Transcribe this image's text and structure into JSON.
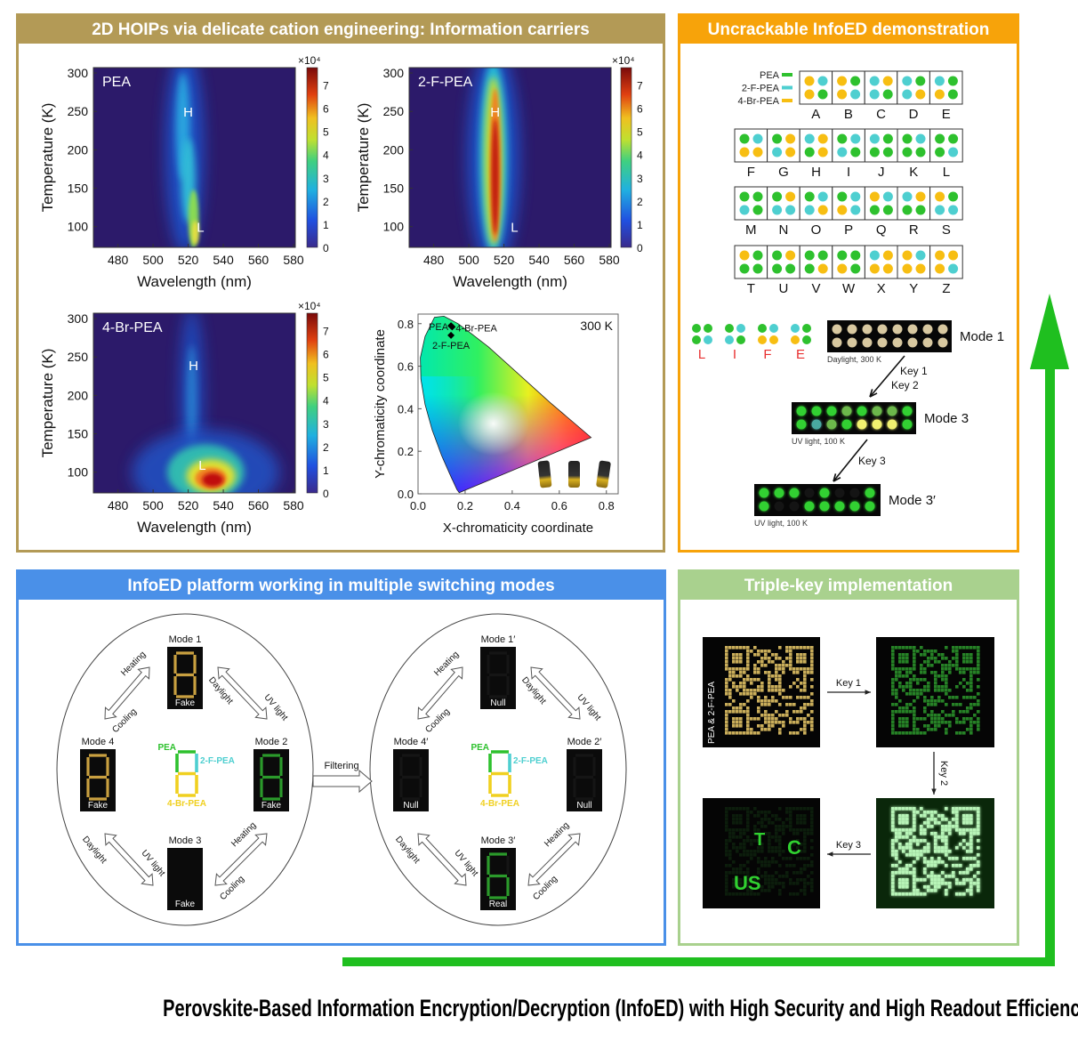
{
  "panels": {
    "hoips": {
      "title": "2D HOIPs via delicate cation engineering: Information carriers",
      "color": "#b39a56"
    },
    "infoed_demo": {
      "title": "Uncrackable InfoED demonstration",
      "color": "#f7a30a"
    },
    "switching": {
      "title": "InfoED platform working in multiple switching modes",
      "color": "#4a90e8"
    },
    "triple_key": {
      "title": "Triple-key implementation",
      "color": "#a9d18e"
    }
  },
  "chart_data": [
    {
      "type": "heatmap",
      "title": "PEA",
      "xlabel": "Wavelength (nm)",
      "ylabel": "Temperature (K)",
      "xticks": [
        "480",
        "500",
        "520",
        "540",
        "560",
        "580"
      ],
      "yticks": [
        "100",
        "150",
        "200",
        "250",
        "300"
      ],
      "xlim": [
        466,
        581
      ],
      "ylim": [
        73,
        307
      ],
      "colorbar": {
        "multiplier": "×10⁴",
        "ticks": [
          "0",
          "1",
          "2",
          "3",
          "4",
          "5",
          "6",
          "7"
        ],
        "range": [
          0,
          7.75
        ]
      },
      "annotations": [
        {
          "text": "H",
          "x": 520,
          "y": 250
        },
        {
          "text": "L",
          "x": 527,
          "y": 100
        }
      ]
    },
    {
      "type": "heatmap",
      "title": "2-F-PEA",
      "xlabel": "Wavelength (nm)",
      "ylabel": "Temperature (K)",
      "xticks": [
        "480",
        "500",
        "520",
        "540",
        "560",
        "580"
      ],
      "yticks": [
        "100",
        "150",
        "200",
        "250",
        "300"
      ],
      "xlim": [
        466,
        581
      ],
      "ylim": [
        73,
        307
      ],
      "colorbar": {
        "multiplier": "×10⁴",
        "ticks": [
          "0",
          "1",
          "2",
          "3",
          "4",
          "5",
          "6",
          "7"
        ],
        "range": [
          0,
          7.75
        ]
      },
      "annotations": [
        {
          "text": "H",
          "x": 515,
          "y": 250
        },
        {
          "text": "L",
          "x": 526,
          "y": 100
        }
      ]
    },
    {
      "type": "heatmap",
      "title": "4-Br-PEA",
      "xlabel": "Wavelength (nm)",
      "ylabel": "Temperature (K)",
      "xticks": [
        "480",
        "500",
        "520",
        "540",
        "560",
        "580"
      ],
      "yticks": [
        "100",
        "150",
        "200",
        "250",
        "300"
      ],
      "xlim": [
        466,
        581
      ],
      "ylim": [
        73,
        307
      ],
      "colorbar": {
        "multiplier": "×10⁴",
        "ticks": [
          "0",
          "1",
          "2",
          "3",
          "4",
          "5",
          "6",
          "7"
        ],
        "range": [
          0,
          7.75
        ]
      },
      "annotations": [
        {
          "text": "H",
          "x": 523,
          "y": 240
        },
        {
          "text": "L",
          "x": 528,
          "y": 110
        }
      ]
    },
    {
      "type": "scatter",
      "title": "",
      "xlabel": "X-chromaticity coordinate",
      "ylabel": "Y-chromaticity coordinate",
      "xticks": [
        "0.0",
        "0.2",
        "0.4",
        "0.6",
        "0.8"
      ],
      "yticks": [
        "0.0",
        "0.2",
        "0.4",
        "0.6",
        "0.8"
      ],
      "xlim": [
        0,
        0.85
      ],
      "ylim": [
        0,
        0.845
      ],
      "annotation": "300 K",
      "points": [
        {
          "name": "PEA",
          "x": 0.14,
          "y": 0.79
        },
        {
          "name": "4-Br-PEA",
          "x": 0.145,
          "y": 0.785
        },
        {
          "name": "2-F-PEA",
          "x": 0.14,
          "y": 0.745
        }
      ]
    }
  ],
  "cation_legend": [
    {
      "name": "PEA",
      "color": "#2ec12e"
    },
    {
      "name": "2-F-PEA",
      "color": "#4ecfd0"
    },
    {
      "name": "4-Br-PEA",
      "color": "#f7be12"
    }
  ],
  "alphabet": [
    {
      "letter": "A",
      "dots": "YCYG"
    },
    {
      "letter": "B",
      "dots": "YGYC"
    },
    {
      "letter": "C",
      "dots": "CYCG"
    },
    {
      "letter": "D",
      "dots": "CGCY"
    },
    {
      "letter": "E",
      "dots": "CGYG"
    },
    {
      "letter": "F",
      "dots": "GCYY"
    },
    {
      "letter": "G",
      "dots": "GYCY"
    },
    {
      "letter": "H",
      "dots": "CYGY"
    },
    {
      "letter": "I",
      "dots": "GCCG"
    },
    {
      "letter": "J",
      "dots": "CGGG"
    },
    {
      "letter": "K",
      "dots": "GCGG"
    },
    {
      "letter": "L",
      "dots": "GGGC"
    },
    {
      "letter": "M",
      "dots": "GGCG"
    },
    {
      "letter": "N",
      "dots": "GYCC"
    },
    {
      "letter": "O",
      "dots": "GCCY"
    },
    {
      "letter": "P",
      "dots": "GCYC"
    },
    {
      "letter": "Q",
      "dots": "YCGG"
    },
    {
      "letter": "R",
      "dots": "CYGG"
    },
    {
      "letter": "S",
      "dots": "YGCC"
    },
    {
      "letter": "T",
      "dots": "YGGG"
    },
    {
      "letter": "U",
      "dots": "GYGG"
    },
    {
      "letter": "V",
      "dots": "GGGY"
    },
    {
      "letter": "W",
      "dots": "GGYG"
    },
    {
      "letter": "X",
      "dots": "CYYY"
    },
    {
      "letter": "Y",
      "dots": "YCYY"
    },
    {
      "letter": "Z",
      "dots": "YYYC"
    }
  ],
  "word": [
    {
      "letter": "L",
      "dots": "GGGC"
    },
    {
      "letter": "I",
      "dots": "GCCG"
    },
    {
      "letter": "F",
      "dots": "GCYY"
    },
    {
      "letter": "E",
      "dots": "CGYG"
    }
  ],
  "demo_plates": [
    {
      "mode": "Mode 1",
      "condition": "Daylight, 300 K",
      "row1": "BBBBBBBB",
      "row2": "BBBBBBBB"
    },
    {
      "mode": "Mode 3",
      "condition": "UV light, 100 K",
      "row1": "GGGgGggG",
      "row2": "GtgGYYYG"
    },
    {
      "mode": "Mode 3′",
      "condition": "UV light, 100 K",
      "row1": "GGG.G..G",
      "row2": "G..GGGGG"
    }
  ],
  "demo_keys": {
    "first": "Key 1",
    "second": "Key 2",
    "third": "Key 3"
  },
  "switching": {
    "filtering": "Filtering",
    "center_labels": {
      "pea": "PEA",
      "f": "2-F-PEA",
      "br": "4-Br-PEA"
    },
    "left_modes": [
      {
        "label": "Mode 1",
        "state": "Fake",
        "digit": "8",
        "style": "gold"
      },
      {
        "label": "Mode 2",
        "state": "Fake",
        "digit": "8",
        "style": "green"
      },
      {
        "label": "Mode 3",
        "state": "Fake",
        "digit": "8",
        "style": "bright"
      },
      {
        "label": "Mode 4",
        "state": "Fake",
        "digit": "8",
        "style": "gold"
      }
    ],
    "right_modes": [
      {
        "label": "Mode 1′",
        "state": "Null",
        "digit": "",
        "style": "off"
      },
      {
        "label": "Mode 2′",
        "state": "Null",
        "digit": "",
        "style": "off"
      },
      {
        "label": "Mode 3′",
        "state": "Real",
        "digit": "6",
        "style": "green"
      },
      {
        "label": "Mode 4′",
        "state": "Null",
        "digit": "",
        "style": "off"
      }
    ],
    "transition_labels": [
      "Heating",
      "Cooling",
      "Daylight",
      "UV light",
      "Daylight",
      "UV light",
      "Heating",
      "Cooling"
    ]
  },
  "triple_key": {
    "sample_label": "PEA & 2-F-PEA",
    "key1": "Key 1",
    "key2": "Key 2",
    "key3": "Key 3",
    "revealed_text": [
      "T",
      "C",
      "US"
    ]
  },
  "caption": "Perovskite-Based Information Encryption/Decryption (InfoED) with High Security and High Readout Efficiency",
  "accent_arrow_color": "#1fbf1f"
}
